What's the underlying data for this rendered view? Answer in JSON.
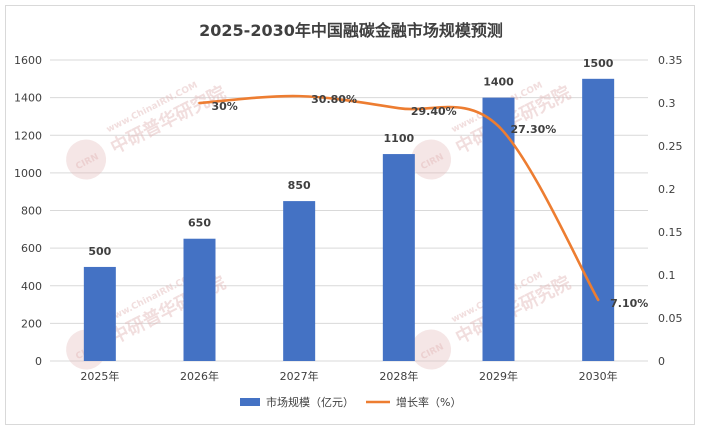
{
  "chart_data": {
    "type": "bar",
    "title": "2025-2030年中国融碳金融市场规模预测",
    "categories": [
      "2025年",
      "2026年",
      "2027年",
      "2028年",
      "2029年",
      "2030年"
    ],
    "series": [
      {
        "name": "市场规模（亿元）",
        "type": "bar",
        "axis": "left",
        "color": "#4472c4",
        "values": [
          500,
          650,
          850,
          1100,
          1400,
          1500
        ],
        "labels": [
          "500",
          "650",
          "850",
          "1100",
          "1400",
          "1500"
        ]
      },
      {
        "name": "增长率（%）",
        "type": "line",
        "axis": "right",
        "color": "#ed7d31",
        "values": [
          null,
          0.3,
          0.308,
          0.294,
          0.273,
          0.071
        ],
        "labels": [
          "",
          "30%",
          "30.80%",
          "29.40%",
          "27.30%",
          "7.10%"
        ]
      }
    ],
    "y_left": {
      "min": 0,
      "max": 1600,
      "ticks": [
        "0",
        "200",
        "400",
        "600",
        "800",
        "1000",
        "1200",
        "1400",
        "1600"
      ]
    },
    "y_right": {
      "min": 0,
      "max": 0.35,
      "ticks": [
        "0",
        "0.05",
        "0.1",
        "0.15",
        "0.2",
        "0.25",
        "0.3",
        "0.35"
      ]
    },
    "grid": true,
    "legend_position": "bottom"
  },
  "watermark": {
    "brand": "中研普华研究院",
    "url": "www.ChinaIRN.COM",
    "logo": "CIRN",
    "color": "#e2b7b7"
  }
}
